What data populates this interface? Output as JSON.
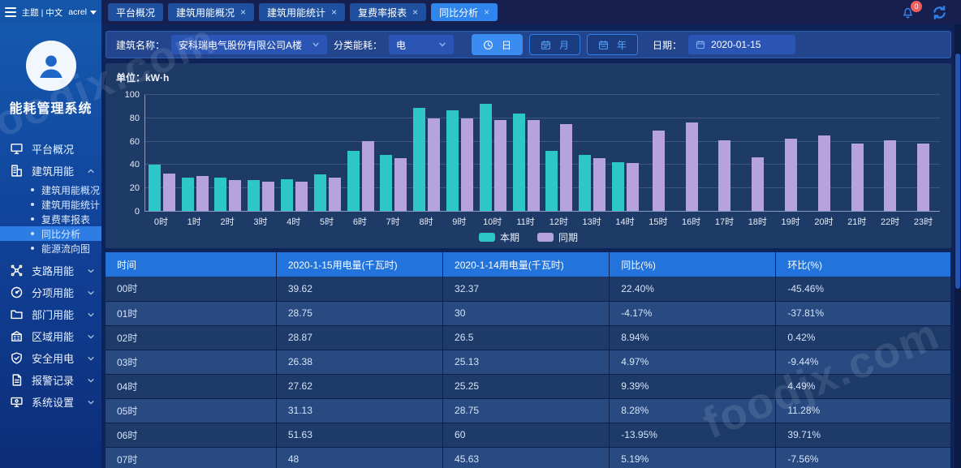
{
  "app": {
    "title": "能耗管理系统"
  },
  "topbar": {
    "theme_label": "主题 | 中文",
    "user_label": "acrel",
    "notification_count": "0",
    "tabs": [
      {
        "label": "平台概况",
        "closable": false,
        "active": false
      },
      {
        "label": "建筑用能概况",
        "closable": true,
        "active": false
      },
      {
        "label": "建筑用能统计",
        "closable": true,
        "active": false
      },
      {
        "label": "复费率报表",
        "closable": true,
        "active": false
      },
      {
        "label": "同比分析",
        "closable": true,
        "active": true
      }
    ]
  },
  "sidebar": {
    "items": [
      {
        "label": "平台概况",
        "icon": "platform-overview-icon",
        "expandable": false
      },
      {
        "label": "建筑用能",
        "icon": "building-energy-icon",
        "expandable": true,
        "expanded": true,
        "children": [
          {
            "label": "建筑用能概况",
            "active": false
          },
          {
            "label": "建筑用能统计",
            "active": false
          },
          {
            "label": "复费率报表",
            "active": false
          },
          {
            "label": "同比分析",
            "active": true
          },
          {
            "label": "能源流向图",
            "active": false
          }
        ]
      },
      {
        "label": "支路用能",
        "icon": "branch-energy-icon",
        "expandable": true
      },
      {
        "label": "分项用能",
        "icon": "category-energy-icon",
        "expandable": true
      },
      {
        "label": "部门用能",
        "icon": "department-energy-icon",
        "expandable": true
      },
      {
        "label": "区域用能",
        "icon": "area-energy-icon",
        "expandable": true
      },
      {
        "label": "安全用电",
        "icon": "safety-icon",
        "expandable": true
      },
      {
        "label": "报警记录",
        "icon": "alarm-record-icon",
        "expandable": true
      },
      {
        "label": "系统设置",
        "icon": "system-settings-icon",
        "expandable": true
      }
    ]
  },
  "filters": {
    "building_label": "建筑名称：",
    "building_value": "安科瑞电气股份有限公司A楼",
    "category_label": "分类能耗：",
    "category_value": "电",
    "period_buttons": [
      {
        "label": "日",
        "icon": "clock-icon",
        "active": true
      },
      {
        "label": "月",
        "icon": "calendar-icon",
        "active": false
      },
      {
        "label": "年",
        "icon": "calendar-year-icon",
        "active": false
      }
    ],
    "date_label": "日期：",
    "date_value": "2020-01-15"
  },
  "chart": {
    "unit_label": "单位：kW·h"
  },
  "chart_data": {
    "type": "bar",
    "title": "",
    "categories": [
      "0时",
      "1时",
      "2时",
      "3时",
      "4时",
      "5时",
      "6时",
      "7时",
      "8时",
      "9时",
      "10时",
      "11时",
      "12时",
      "13时",
      "14时",
      "15时",
      "16时",
      "17时",
      "18时",
      "19时",
      "20时",
      "21时",
      "22时",
      "23时"
    ],
    "series": [
      {
        "name": "本期",
        "color": "#2EC7C9",
        "values": [
          39.62,
          28.75,
          28.87,
          26.38,
          27.62,
          31.13,
          51.63,
          48,
          89,
          86.5,
          92.5,
          84,
          52,
          48,
          42,
          null,
          null,
          null,
          null,
          null,
          null,
          null,
          null,
          null
        ]
      },
      {
        "name": "同期",
        "color": "#B6A2DE",
        "values": [
          32.37,
          30,
          26.5,
          25.13,
          25.25,
          28.75,
          60,
          45.63,
          79.5,
          79.5,
          78,
          78,
          75,
          45.5,
          41,
          69,
          76,
          61,
          46,
          62,
          65,
          58,
          61,
          58
        ]
      }
    ],
    "xlabel": "",
    "ylabel": "kW·h",
    "ylim": [
      0,
      100
    ],
    "yticks": [
      0,
      20,
      40,
      60,
      80,
      100
    ],
    "grid": true,
    "legend": [
      "本期",
      "同期"
    ],
    "legend_position": "bottom-center"
  },
  "table": {
    "headers": [
      "时间",
      "2020-1-15用电量(千瓦时)",
      "2020-1-14用电量(千瓦时)",
      "同比(%)",
      "环比(%)"
    ],
    "col_widths_pct": [
      20.2,
      19.7,
      19.7,
      19.7,
      20.7
    ],
    "rows": [
      [
        "00时",
        "39.62",
        "32.37",
        "22.40%",
        "-45.46%"
      ],
      [
        "01时",
        "28.75",
        "30",
        "-4.17%",
        "-37.81%"
      ],
      [
        "02时",
        "28.87",
        "26.5",
        "8.94%",
        "0.42%"
      ],
      [
        "03时",
        "26.38",
        "25.13",
        "4.97%",
        "-9.44%"
      ],
      [
        "04时",
        "27.62",
        "25.25",
        "9.39%",
        "4.49%"
      ],
      [
        "05时",
        "31.13",
        "28.75",
        "8.28%",
        "11.28%"
      ],
      [
        "06时",
        "51.63",
        "60",
        "-13.95%",
        "39.71%"
      ],
      [
        "07时",
        "48",
        "45.63",
        "5.19%",
        "-7.56%"
      ]
    ]
  },
  "watermark": "foodjx.com",
  "colors": {
    "accent": "#2F85EC",
    "series_current": "#2EC7C9",
    "series_previous": "#B6A2DE",
    "table_header": "#2274DC"
  }
}
